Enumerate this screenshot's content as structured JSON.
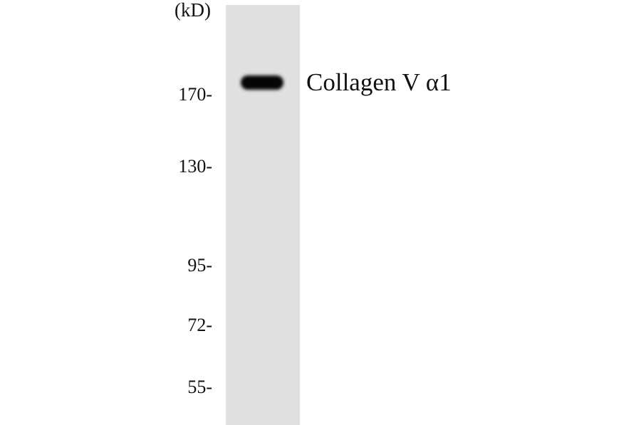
{
  "unit_label": "(kD)",
  "markers": [
    {
      "label": "170-",
      "kd": 170
    },
    {
      "label": "130-",
      "kd": 130
    },
    {
      "label": "95-",
      "kd": 95
    },
    {
      "label": "72-",
      "kd": 72
    },
    {
      "label": "55-",
      "kd": 55
    }
  ],
  "lanes": 1,
  "band_label": "Collagen V α1",
  "colors": {
    "lane": "#e0e0e0",
    "band": "#050505",
    "background": "#ffffff"
  }
}
